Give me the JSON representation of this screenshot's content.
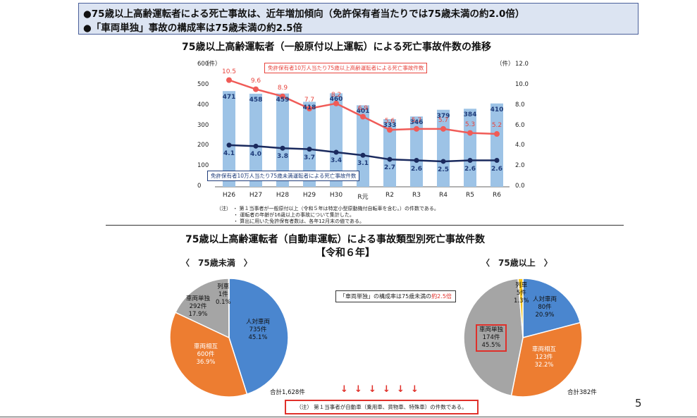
{
  "summary": {
    "line1": "●75歳以上高齢運転者による死亡事故は、近年増加傾向（免許保有者当たりでは75歳未満の約2.0倍）",
    "line2": "●「車両単独」事故の構成率は75歳未満の約2.5倍"
  },
  "chart1": {
    "title": "75歳以上高齢運転者（一般原付以上運転）による死亡事故件数の推移",
    "left_unit": "（件）",
    "right_unit": "（件）",
    "left_ticks": [
      "600",
      "500",
      "400",
      "300",
      "200",
      "100",
      "0"
    ],
    "right_ticks": [
      "12.0",
      "10.0",
      "8.0",
      "6.0",
      "4.0",
      "2.0",
      "0.0"
    ],
    "legend_red": "免許保有者10万人当たり75歳以上高齢運転者による死亡事故件数",
    "legend_navy": "免許保有者10万人当たり75歳未満運転者による死亡事故件数",
    "notes": [
      "（注） ・ 第１当事者が一般原付以上（令和５年は特定小型原動機付自転車を含む。）の件数である。",
      "・ 運転者の年齢が16歳以上の事故について集計した。",
      "・ 算出に用いた免許保有者数は、各年12月末の値である。"
    ]
  },
  "chart_data": [
    {
      "type": "bar",
      "title": "75歳以上高齢運転者（一般原付以上運転）による死亡事故件数の推移",
      "categories": [
        "H26",
        "H27",
        "H28",
        "H29",
        "H30",
        "R元",
        "R2",
        "R3",
        "R4",
        "R5",
        "R6"
      ],
      "ylim": [
        0,
        600
      ],
      "y2lim": [
        0.0,
        12.0
      ],
      "series": [
        {
          "type": "bar",
          "axis": "left",
          "values": [
            471,
            458,
            459,
            418,
            460,
            401,
            333,
            346,
            379,
            384,
            410
          ],
          "color": "#9dc3e6"
        },
        {
          "type": "line",
          "axis": "right",
          "name": "免許保有者10万人当たり75歳以上高齢運転者による死亡事故件数",
          "values": [
            10.5,
            9.6,
            8.9,
            7.7,
            8.2,
            6.9,
            5.6,
            5.7,
            5.7,
            5.3,
            5.2
          ],
          "color": "#f05b57"
        },
        {
          "type": "line",
          "axis": "right",
          "name": "免許保有者10万人当たり75歳未満運転者による死亡事故件数",
          "values": [
            4.1,
            4.0,
            3.8,
            3.7,
            3.4,
            3.1,
            2.7,
            2.6,
            2.5,
            2.6,
            2.6
          ],
          "color": "#1a2a5e"
        }
      ],
      "grid": false
    },
    {
      "type": "pie",
      "title": "75歳未満",
      "slices": [
        {
          "name": "人対車両",
          "count": "735件",
          "pct": "45.1%",
          "value": 45.1,
          "color": "#4a86cf"
        },
        {
          "name": "車両相互",
          "count": "600件",
          "pct": "36.9%",
          "value": 36.9,
          "color": "#ed7d31"
        },
        {
          "name": "車両単独",
          "count": "292件",
          "pct": "17.9%",
          "value": 17.9,
          "color": "#a5a5a5"
        },
        {
          "name": "列車",
          "count": "1件",
          "pct": "0.1%",
          "value": 0.1,
          "color": "#f2c21b"
        }
      ],
      "total": "合計1,628件"
    },
    {
      "type": "pie",
      "title": "75歳以上",
      "slices": [
        {
          "name": "人対車両",
          "count": "80件",
          "pct": "20.9%",
          "value": 20.9,
          "color": "#4a86cf"
        },
        {
          "name": "車両相互",
          "count": "123件",
          "pct": "32.2%",
          "value": 32.2,
          "color": "#ed7d31"
        },
        {
          "name": "車両単独",
          "count": "174件",
          "pct": "45.5%",
          "value": 45.5,
          "color": "#a5a5a5"
        },
        {
          "name": "列車",
          "count": "5件",
          "pct": "1.3%",
          "value": 1.3,
          "color": "#f2c21b"
        }
      ],
      "total": "合計382件"
    }
  ],
  "chart2": {
    "title": "75歳以上高齢運転者（自動車運転）による事故類型別死亡事故件数",
    "subtitle": "【令和６年】",
    "left_head": "〈　75歳未満　〉",
    "right_head": "〈　75歳以上　〉",
    "callout_pre": "「車両単独」の構成率は75歳未満の",
    "callout_hl": "約2.5倍",
    "note": "（注） 第１当事者が自動車（乗用車、貨物車、特殊車）の件数である。"
  },
  "page_number": "5"
}
